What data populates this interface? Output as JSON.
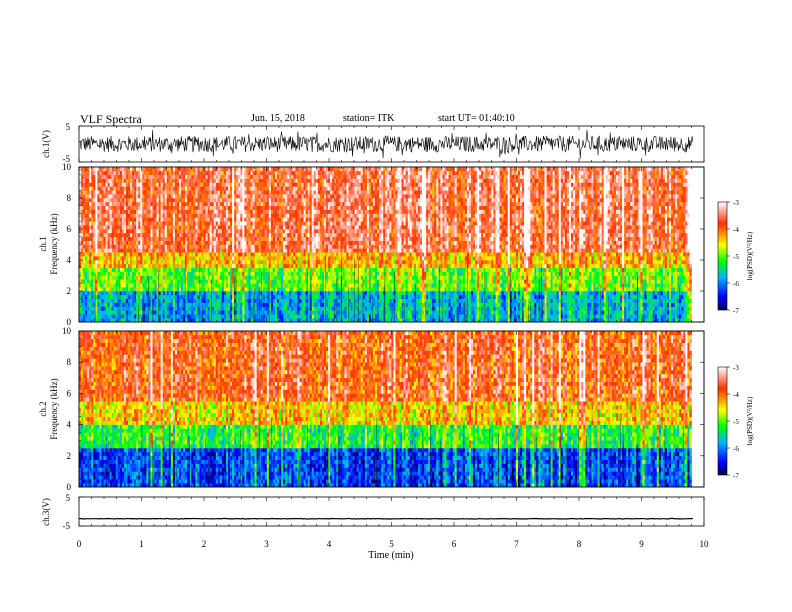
{
  "header": {
    "title": "VLF Spectra",
    "date": "Jun. 15, 2018",
    "station": "station= ITK",
    "start": "start UT= 01:40:10"
  },
  "colors": {
    "bar_stops": [
      "#000055",
      "#0000ff",
      "#00b4ff",
      "#00ff00",
      "#ffff00",
      "#ff3000",
      "#ffffff"
    ],
    "trace": "#000000"
  },
  "chart_data": [
    {
      "type": "line",
      "panel": "ch1-waveform",
      "ylabel": "ch.1(V)",
      "ylim": [
        -5,
        5
      ],
      "yticks": [
        "5",
        "-5"
      ],
      "xlim": [
        0,
        10
      ],
      "note": "dense noisy waveform spanning roughly -4 to 4 V from 0 to about 9.8 min"
    },
    {
      "type": "heatmap",
      "panel": "ch1-spectrogram",
      "ylabel": "ch.1\nFrequency (kHz)",
      "ylim": [
        0,
        10
      ],
      "yticks": [
        "0",
        "2",
        "4",
        "6",
        "8",
        "10"
      ],
      "xlim": [
        0,
        10
      ],
      "data_end_min": 9.8,
      "bands": [
        {
          "from_khz": 0,
          "to_khz": 2,
          "level": -5.8
        },
        {
          "from_khz": 2,
          "to_khz": 3.5,
          "level": -5.0
        },
        {
          "from_khz": 3.5,
          "to_khz": 4.5,
          "level": -4.3
        },
        {
          "from_khz": 4.5,
          "to_khz": 10,
          "level": -3.6
        }
      ],
      "colorbar": {
        "label": "log(PSD)(V²/Hz)",
        "range": [
          -7,
          -3
        ],
        "ticks": [
          "-3",
          "-4",
          "-5",
          "-6",
          "-7"
        ]
      }
    },
    {
      "type": "heatmap",
      "panel": "ch2-spectrogram",
      "ylabel": "ch.2\nFrequency (kHz)",
      "ylim": [
        0,
        10
      ],
      "yticks": [
        "0",
        "2",
        "4",
        "6",
        "8",
        "10"
      ],
      "xlim": [
        0,
        10
      ],
      "data_end_min": 9.8,
      "bands": [
        {
          "from_khz": 0,
          "to_khz": 2.5,
          "level": -6.2
        },
        {
          "from_khz": 2.5,
          "to_khz": 4.0,
          "level": -5.2
        },
        {
          "from_khz": 4.0,
          "to_khz": 5.5,
          "level": -4.4
        },
        {
          "from_khz": 5.5,
          "to_khz": 10,
          "level": -3.8
        }
      ],
      "colorbar": {
        "label": "log(PSD)(V²/Hz)",
        "range": [
          -7,
          -3
        ],
        "ticks": [
          "-3",
          "-4",
          "-5",
          "-6",
          "-7"
        ]
      }
    },
    {
      "type": "line",
      "panel": "ch3-waveform",
      "ylabel": "ch.3(V)",
      "ylim": [
        -5,
        5
      ],
      "yticks": [
        "5",
        "-5"
      ],
      "xlim": [
        0,
        10
      ],
      "constant_value": -2.5
    },
    {
      "type": "axis",
      "panel": "time-axis",
      "xlabel": "Time (min)",
      "xticks": [
        "0",
        "1",
        "2",
        "3",
        "4",
        "5",
        "6",
        "7",
        "8",
        "9",
        "10"
      ]
    }
  ]
}
